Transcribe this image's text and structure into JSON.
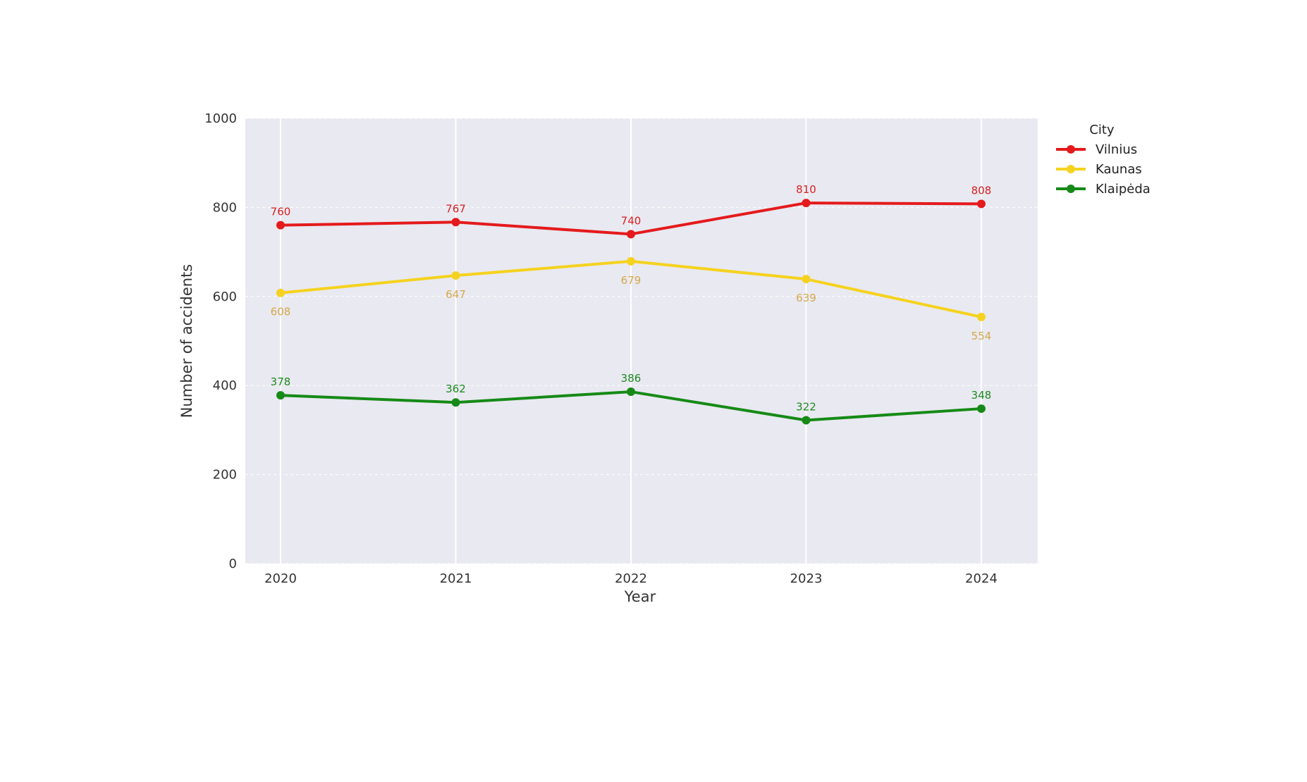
{
  "chart_data": {
    "type": "line",
    "title": "",
    "xlabel": "Year",
    "ylabel": "Number of accidents",
    "x": [
      "2020",
      "2021",
      "2022",
      "2023",
      "2024"
    ],
    "ylim": [
      0,
      1000
    ],
    "yticks": [
      0,
      200,
      400,
      600,
      800,
      1000
    ],
    "grid": true,
    "legend": {
      "title": "City",
      "position": "right"
    },
    "series": [
      {
        "name": "Vilnius",
        "color": "#e41a1c",
        "label_color": "#d62020",
        "values": [
          760,
          767,
          740,
          810,
          808
        ],
        "label_position": "above"
      },
      {
        "name": "Kaunas",
        "color": "#f5d21f",
        "label_color": "#d4a94a",
        "values": [
          608,
          647,
          679,
          639,
          554
        ],
        "label_position": "below"
      },
      {
        "name": "Klaipėda",
        "color": "#168a16",
        "label_color": "#1e8a1e",
        "values": [
          378,
          362,
          386,
          322,
          348
        ],
        "label_position": "above"
      }
    ],
    "plot_background": "#e9e9f1"
  }
}
